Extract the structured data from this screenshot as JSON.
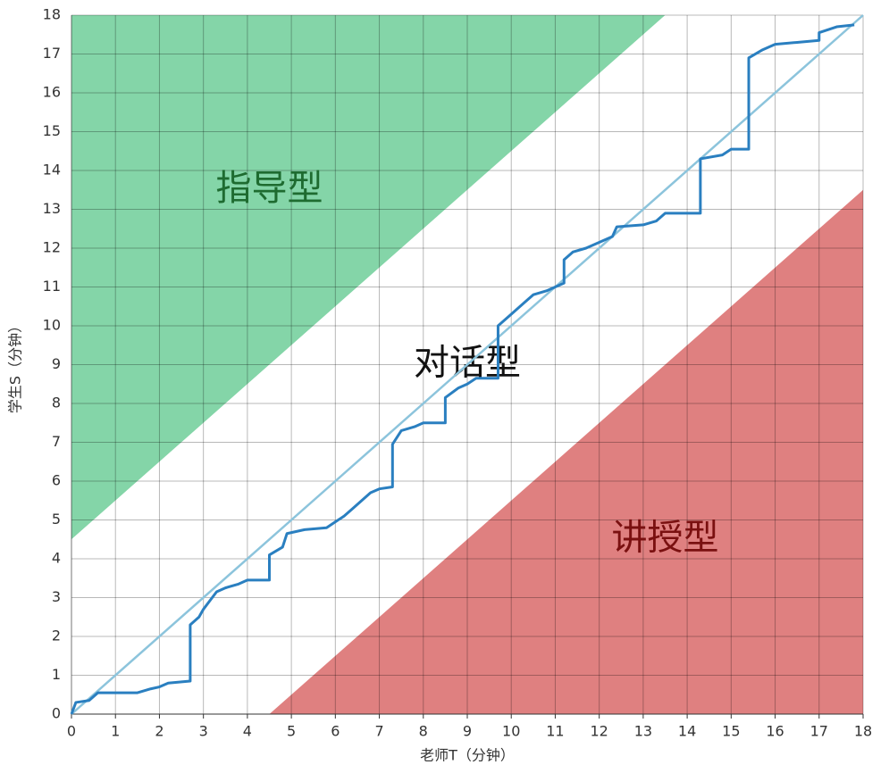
{
  "chart_data": {
    "type": "line",
    "x_label": "老师T（分钟）",
    "y_label": "学生S（分钟）",
    "xlim": [
      0,
      18
    ],
    "ylim": [
      0,
      18
    ],
    "xticks": [
      0,
      1,
      2,
      3,
      4,
      5,
      6,
      7,
      8,
      9,
      10,
      11,
      12,
      13,
      14,
      15,
      16,
      17,
      18
    ],
    "yticks": [
      0,
      1,
      2,
      3,
      4,
      5,
      6,
      7,
      8,
      9,
      10,
      11,
      12,
      13,
      14,
      15,
      16,
      17,
      18
    ],
    "grid": true,
    "regions": [
      {
        "label": "指导型",
        "color": "#84d5a8",
        "label_color": "#1e6b30",
        "x": [
          0,
          0,
          13.5
        ],
        "y": [
          4.5,
          18,
          18
        ]
      },
      {
        "label": "对话型",
        "color": "#ffffff",
        "label_color": "#111111",
        "x": [
          0,
          4.5,
          18,
          18,
          13.5,
          0
        ],
        "y": [
          0,
          0,
          13.5,
          18,
          18,
          4.5
        ]
      },
      {
        "label": "讲授型",
        "color": "#df8080",
        "label_color": "#7a1010",
        "x": [
          4.5,
          18,
          18
        ],
        "y": [
          0,
          0,
          13.5
        ]
      }
    ],
    "reference_line": {
      "color": "#8cc4dc",
      "x": [
        0,
        18
      ],
      "values": [
        0,
        18
      ]
    },
    "color": "#2a7fc0",
    "x": [
      0,
      0.1,
      0.4,
      0.6,
      1.5,
      1.8,
      2.0,
      2.2,
      2.7,
      2.7,
      2.9,
      3.0,
      3.2,
      3.3,
      3.5,
      3.8,
      4.0,
      4.5,
      4.5,
      4.8,
      4.9,
      5.3,
      5.8,
      6.0,
      6.2,
      6.4,
      6.6,
      6.8,
      7.0,
      7.3,
      7.3,
      7.5,
      7.8,
      8.0,
      8.5,
      8.5,
      8.8,
      9.0,
      9.2,
      9.7,
      9.7,
      10.0,
      10.3,
      10.5,
      10.8,
      11.0,
      11.2,
      11.2,
      11.4,
      11.7,
      12.0,
      12.3,
      12.4,
      13.0,
      13.3,
      13.5,
      14.3,
      14.3,
      14.8,
      15.0,
      15.4,
      15.4,
      15.7,
      16.0,
      16.5,
      17.0,
      17.0,
      17.4,
      17.8
    ],
    "values": [
      0,
      0.3,
      0.35,
      0.55,
      0.55,
      0.65,
      0.7,
      0.8,
      0.85,
      2.3,
      2.5,
      2.7,
      3.0,
      3.15,
      3.25,
      3.35,
      3.45,
      3.45,
      4.1,
      4.3,
      4.65,
      4.75,
      4.8,
      4.95,
      5.1,
      5.3,
      5.5,
      5.7,
      5.8,
      5.85,
      6.95,
      7.3,
      7.4,
      7.5,
      7.5,
      8.15,
      8.4,
      8.5,
      8.65,
      8.65,
      10.0,
      10.3,
      10.6,
      10.8,
      10.9,
      11.0,
      11.1,
      11.7,
      11.9,
      12.0,
      12.15,
      12.3,
      12.55,
      12.6,
      12.7,
      12.9,
      12.9,
      14.3,
      14.4,
      14.55,
      14.55,
      16.9,
      17.1,
      17.25,
      17.3,
      17.35,
      17.55,
      17.7,
      17.75
    ]
  }
}
